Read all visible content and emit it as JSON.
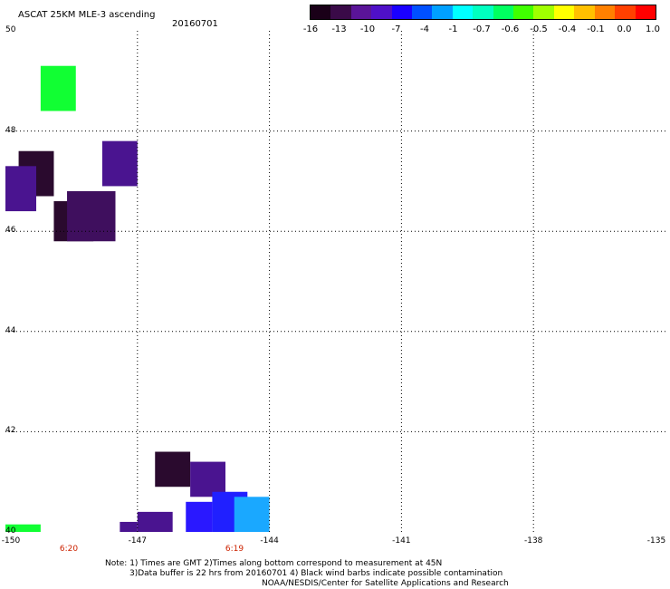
{
  "header": {
    "title": "ASCAT 25KM MLE-3 ascending",
    "date": "20160701"
  },
  "colorbar": {
    "labels": [
      "-16",
      "-13",
      "-10",
      "-7",
      "-4",
      "-1",
      "-0.7",
      "-0.6",
      "-0.5",
      "-0.4",
      "-0.1",
      "0.0",
      "1.0"
    ],
    "colors": [
      "#1a0018",
      "#3a0a48",
      "#5a1498",
      "#4f10c8",
      "#1a00ff",
      "#0050ff",
      "#00a0ff",
      "#00ffff",
      "#00ffc0",
      "#00ff60",
      "#40ff00",
      "#a0ff00",
      "#ffff00",
      "#ffc000",
      "#ff8000",
      "#ff4000",
      "#ff0000"
    ]
  },
  "map": {
    "lat_labels": [
      "50",
      "48",
      "46",
      "44",
      "42",
      "40"
    ],
    "lon_labels": [
      "-150",
      "-147",
      "-144",
      "-141",
      "-138",
      "-135"
    ],
    "time_labels": [
      "6:20",
      "6:19"
    ],
    "cells": [
      {
        "lon0": -149.2,
        "lon1": -148.4,
        "lat0": 48.4,
        "lat1": 49.3,
        "color": "#11ff33"
      },
      {
        "lon0": -149.7,
        "lon1": -148.9,
        "lat0": 46.7,
        "lat1": 47.6,
        "color": "#2a0a2e"
      },
      {
        "lon0": -150.0,
        "lon1": -149.3,
        "lat0": 46.4,
        "lat1": 47.3,
        "color": "#4a1490"
      },
      {
        "lon0": -147.8,
        "lon1": -147.0,
        "lat0": 46.9,
        "lat1": 47.8,
        "color": "#4a1490"
      },
      {
        "lon0": -148.9,
        "lon1": -148.0,
        "lat0": 45.8,
        "lat1": 46.6,
        "color": "#2a0a2e"
      },
      {
        "lon0": -148.6,
        "lon1": -147.5,
        "lat0": 45.8,
        "lat1": 46.8,
        "color": "#3f0f5e"
      },
      {
        "lon0": -150.0,
        "lon1": -149.2,
        "lat0": 40.0,
        "lat1": 40.15,
        "color": "#11ff33"
      },
      {
        "lon0": -146.6,
        "lon1": -145.8,
        "lat0": 40.9,
        "lat1": 41.6,
        "color": "#2a0a2e"
      },
      {
        "lon0": -145.8,
        "lon1": -145.0,
        "lat0": 40.7,
        "lat1": 41.4,
        "color": "#4a1490"
      },
      {
        "lon0": -147.0,
        "lon1": -146.2,
        "lat0": 40.0,
        "lat1": 40.4,
        "color": "#4a1490"
      },
      {
        "lon0": -147.4,
        "lon1": -147.0,
        "lat0": 40.0,
        "lat1": 40.2,
        "color": "#4a1490"
      },
      {
        "lon0": -145.9,
        "lon1": -145.3,
        "lat0": 40.0,
        "lat1": 40.6,
        "color": "#2a18ff"
      },
      {
        "lon0": -145.3,
        "lon1": -144.5,
        "lat0": 40.0,
        "lat1": 40.8,
        "color": "#2020ff"
      },
      {
        "lon0": -144.8,
        "lon1": -144.0,
        "lat0": 40.0,
        "lat1": 40.7,
        "color": "#1aa8ff"
      }
    ]
  },
  "notes": {
    "line1": "Note: 1) Times are GMT 2)Times along bottom correspond to measurement at 45N",
    "line2": "3)Data buffer is 22 hrs from 20160701 4) Black wind barbs indicate possible contamination",
    "line3": "NOAA/NESDIS/Center for Satellite Applications and Research"
  }
}
